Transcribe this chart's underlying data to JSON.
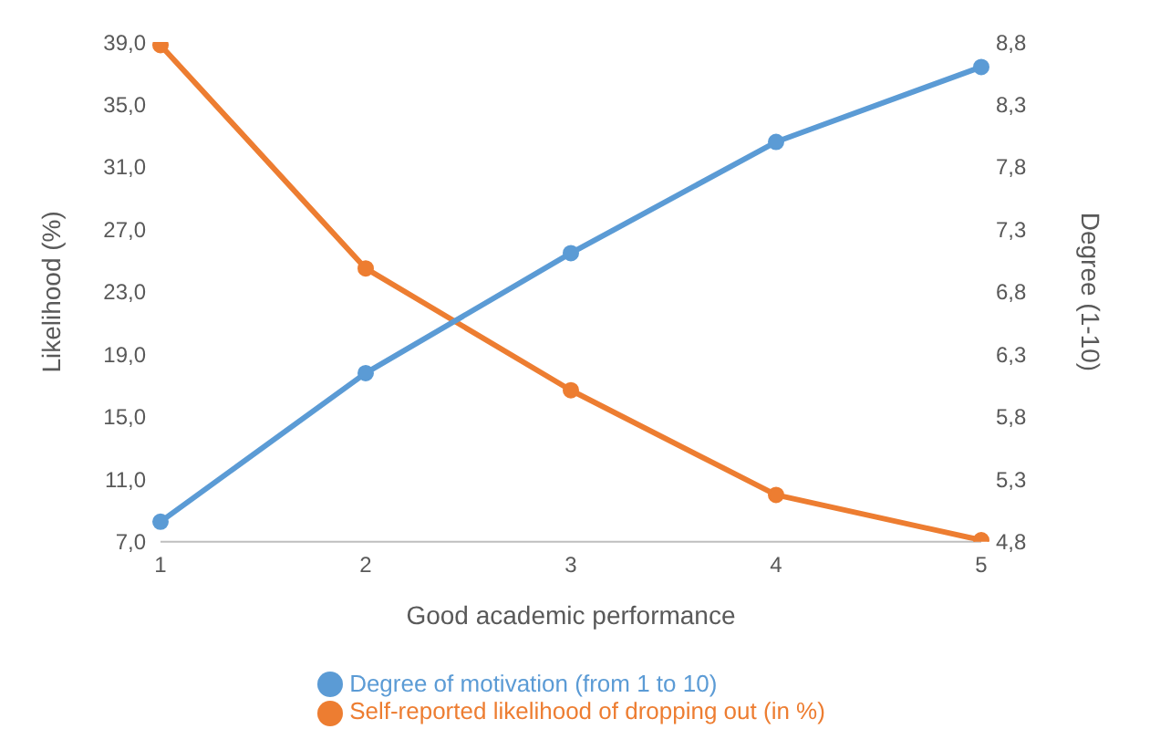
{
  "chart_data": {
    "type": "line",
    "xlabel": "Good academic performance",
    "ylabel": "Likelihood (%)",
    "y2label": "Degree (1-10)",
    "categories": [
      "1",
      "2",
      "3",
      "4",
      "5"
    ],
    "series": [
      {
        "name": "Self-reported likelihood of dropping out (in %)",
        "color": "#ed7d31",
        "values": [
          38.8,
          24.5,
          16.7,
          10.0,
          7.1
        ]
      },
      {
        "name": "Degree of motivation (from 1 to 10)",
        "color": "#5b9bd5",
        "axis": "y2",
        "values": [
          4.96,
          6.15,
          7.11,
          8.0,
          8.6
        ]
      }
    ],
    "ylim": [
      7,
      39
    ],
    "yticks": [
      {
        "value": 7,
        "label": "7,0"
      },
      {
        "value": 11,
        "label": "11,0"
      },
      {
        "value": 15,
        "label": "15,0"
      },
      {
        "value": 19,
        "label": "19,0"
      },
      {
        "value": 23,
        "label": "23,0"
      },
      {
        "value": 27,
        "label": "27,0"
      },
      {
        "value": 31,
        "label": "31,0"
      },
      {
        "value": 35,
        "label": "35,0"
      },
      {
        "value": 39,
        "label": "39,0"
      }
    ],
    "y2lim": [
      4.8,
      8.8
    ],
    "y2ticks": [
      {
        "value": 4.8,
        "label": "4,8"
      },
      {
        "value": 5.3,
        "label": "5,3"
      },
      {
        "value": 5.8,
        "label": "5,8"
      },
      {
        "value": 6.3,
        "label": "6,3"
      },
      {
        "value": 6.8,
        "label": "6,8"
      },
      {
        "value": 7.3,
        "label": "7,3"
      },
      {
        "value": 7.8,
        "label": "7,8"
      },
      {
        "value": 8.3,
        "label": "8,3"
      },
      {
        "value": 8.8,
        "label": "8,8"
      }
    ],
    "grid": false,
    "legend": "bottom",
    "marker": "circle",
    "line_style": "solid"
  }
}
